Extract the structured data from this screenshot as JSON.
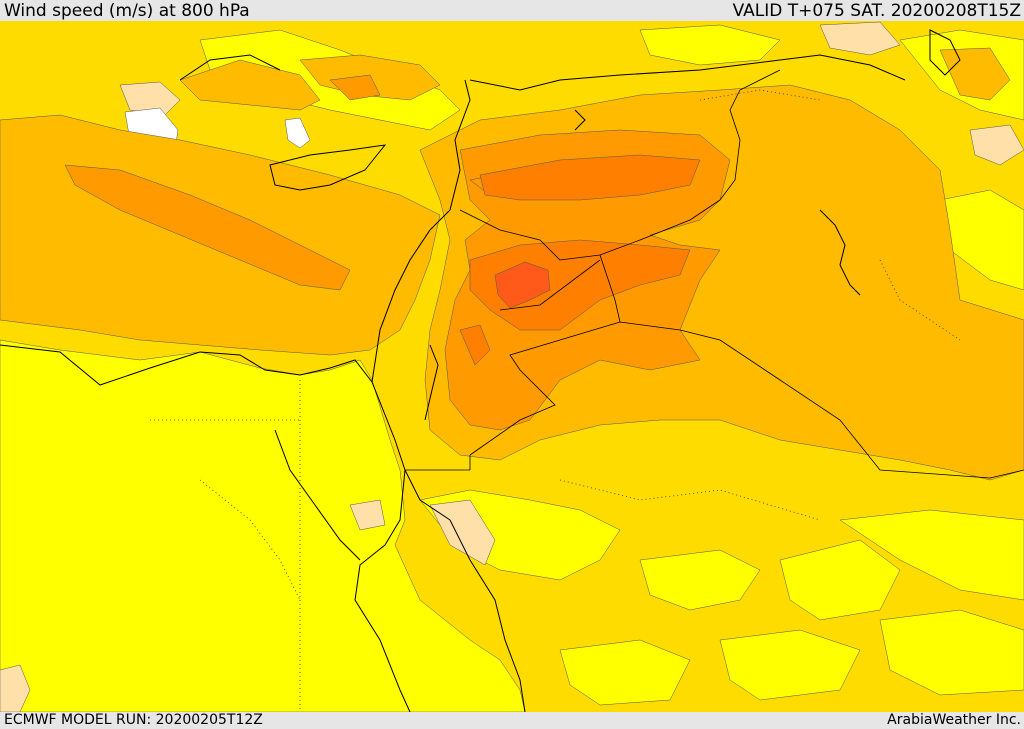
{
  "header": {
    "title": "Wind speed (m/s) at 800 hPa",
    "valid": "VALID T+075 SAT. 20200208T15Z"
  },
  "footer": {
    "model_run": "ECMWF MODEL RUN: 20200205T12Z",
    "credit": "ArabiaWeather Inc."
  },
  "colors": {
    "band_0_5": "#ffffff",
    "band_5_10": "#ffe0a8",
    "band_10_15": "#ffff00",
    "band_15_20": "#ffdc00",
    "band_20_25": "#ffbb00",
    "band_25_30": "#ff9a00",
    "band_30_35": "#ff8000",
    "band_35_40": "#ff5a1a",
    "coastline": "#000000",
    "border": "#000000"
  }
}
